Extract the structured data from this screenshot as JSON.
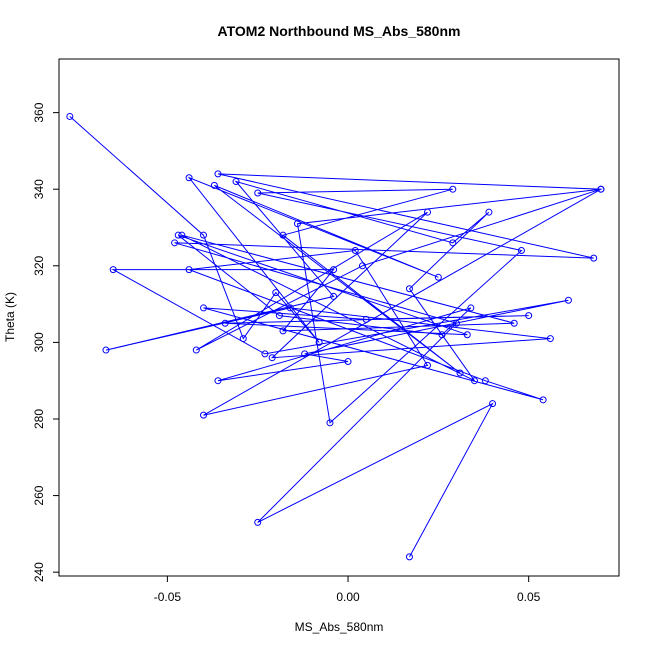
{
  "chart_data": {
    "type": "line",
    "markers": "open-circle",
    "title": "ATOM2 Northbound MS_Abs_580nm",
    "xlabel": "MS_Abs_580nm",
    "ylabel": "Theta (K)",
    "xlim": [
      -0.08,
      0.075
    ],
    "ylim": [
      239,
      374
    ],
    "xticks": [
      -0.05,
      0.0,
      0.05
    ],
    "xtick_labels": [
      "-0.05",
      "0.00",
      "0.05"
    ],
    "yticks": [
      240,
      260,
      280,
      300,
      320,
      340,
      360
    ],
    "ytick_labels": [
      "240",
      "260",
      "280",
      "300",
      "320",
      "340",
      "360"
    ],
    "grid": false,
    "color": "#0000ff",
    "series": [
      {
        "x": [
          -0.077,
          -0.04,
          -0.029,
          -0.02,
          -0.008,
          -0.044,
          0.025,
          -0.037,
          0.031,
          -0.018,
          0.029,
          -0.025,
          0.048,
          -0.005,
          -0.014,
          0.07,
          0.004,
          -0.042,
          0.022,
          -0.021,
          0.056,
          -0.016,
          -0.067,
          -0.004,
          -0.031,
          0.029,
          0.039,
          0.017,
          0.035,
          -0.046,
          0.046,
          -0.018,
          -0.004,
          -0.065,
          -0.023,
          0.061,
          -0.012,
          0.0,
          -0.036,
          0.034,
          0.026,
          -0.019,
          -0.047,
          0.033,
          -0.034,
          0.05,
          0.005,
          -0.04,
          0.054,
          0.038,
          -0.044,
          0.002,
          0.022,
          -0.04,
          0.07,
          -0.036,
          0.068,
          -0.048,
          0.03,
          -0.025,
          0.04,
          0.017
        ],
        "y": [
          359,
          328,
          301,
          313,
          300,
          343,
          317,
          341,
          292,
          328,
          340,
          339,
          324,
          279,
          331,
          340,
          320,
          298,
          334,
          296,
          301,
          309,
          298,
          312,
          342,
          326,
          334,
          314,
          290,
          328,
          305,
          303,
          319,
          319,
          297,
          311,
          297,
          295,
          290,
          309,
          302,
          307,
          328,
          302,
          305,
          307,
          306,
          309,
          285,
          290,
          319,
          324,
          294,
          281,
          340,
          344,
          322,
          326,
          305,
          253,
          284,
          244
        ]
      }
    ]
  }
}
